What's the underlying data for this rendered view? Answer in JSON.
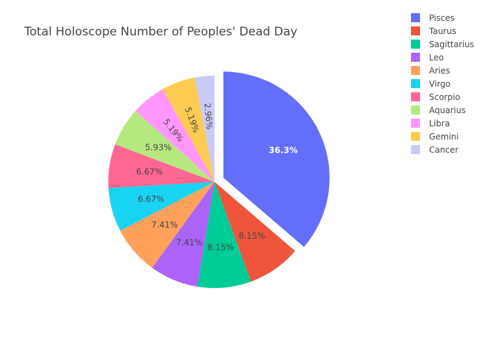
{
  "chart_data": {
    "type": "pie",
    "title": "Total Holoscope Number of Peoples' Dead Day",
    "labels": [
      "Pisces",
      "Taurus",
      "Sagittarius",
      "Leo",
      "Aries",
      "Virgo",
      "Scorpio",
      "Aquarius",
      "Libra",
      "Gemini",
      "Cancer"
    ],
    "values": [
      36.3,
      8.15,
      8.15,
      7.41,
      7.41,
      6.67,
      6.67,
      5.93,
      5.19,
      5.19,
      2.96
    ],
    "value_labels": [
      "36.3%",
      "8.15%",
      "8.15%",
      "7.41%",
      "7.41%",
      "6.67%",
      "6.67%",
      "5.93%",
      "5.19%",
      "5.19%",
      "2.96%"
    ],
    "colors": [
      "#636efa",
      "#EF553B",
      "#00cc96",
      "#ab63fa",
      "#FFA15A",
      "#19d3f3",
      "#FF6692",
      "#B6E880",
      "#FF97FF",
      "#FECB52",
      "#C8CBF7"
    ],
    "pulled_slice": "Pisces",
    "legend_position": "top-right"
  }
}
